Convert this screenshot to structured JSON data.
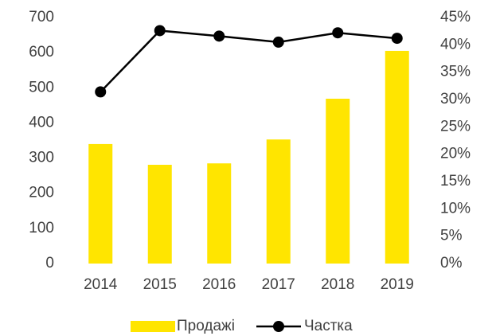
{
  "chart_data": {
    "type": "bar",
    "categories": [
      "2014",
      "2015",
      "2016",
      "2017",
      "2018",
      "2019"
    ],
    "series": [
      {
        "name": "Продажі",
        "type": "bar",
        "color": "#ffe500",
        "values": [
          340,
          281,
          285,
          353,
          469,
          605
        ]
      },
      {
        "name": "Частка",
        "type": "line",
        "color": "#000000",
        "axis": "y2",
        "values": [
          31.4,
          42.6,
          41.6,
          40.5,
          42.2,
          41.2
        ]
      }
    ],
    "ylim": [
      0,
      700
    ],
    "yticks": [
      0,
      100,
      200,
      300,
      400,
      500,
      600,
      700
    ],
    "y2lim": [
      0,
      45
    ],
    "y2ticks": [
      {
        "value": 0,
        "label": "0%"
      },
      {
        "value": 5,
        "label": "5%"
      },
      {
        "value": 10,
        "label": "10%"
      },
      {
        "value": 15,
        "label": "15%"
      },
      {
        "value": 20,
        "label": "20%"
      },
      {
        "value": 25,
        "label": "25%"
      },
      {
        "value": 30,
        "label": "30%"
      },
      {
        "value": 35,
        "label": "35%"
      },
      {
        "value": 40,
        "label": "40%"
      },
      {
        "value": 45,
        "label": "45%"
      }
    ],
    "grid": false,
    "legend": "bottom"
  }
}
